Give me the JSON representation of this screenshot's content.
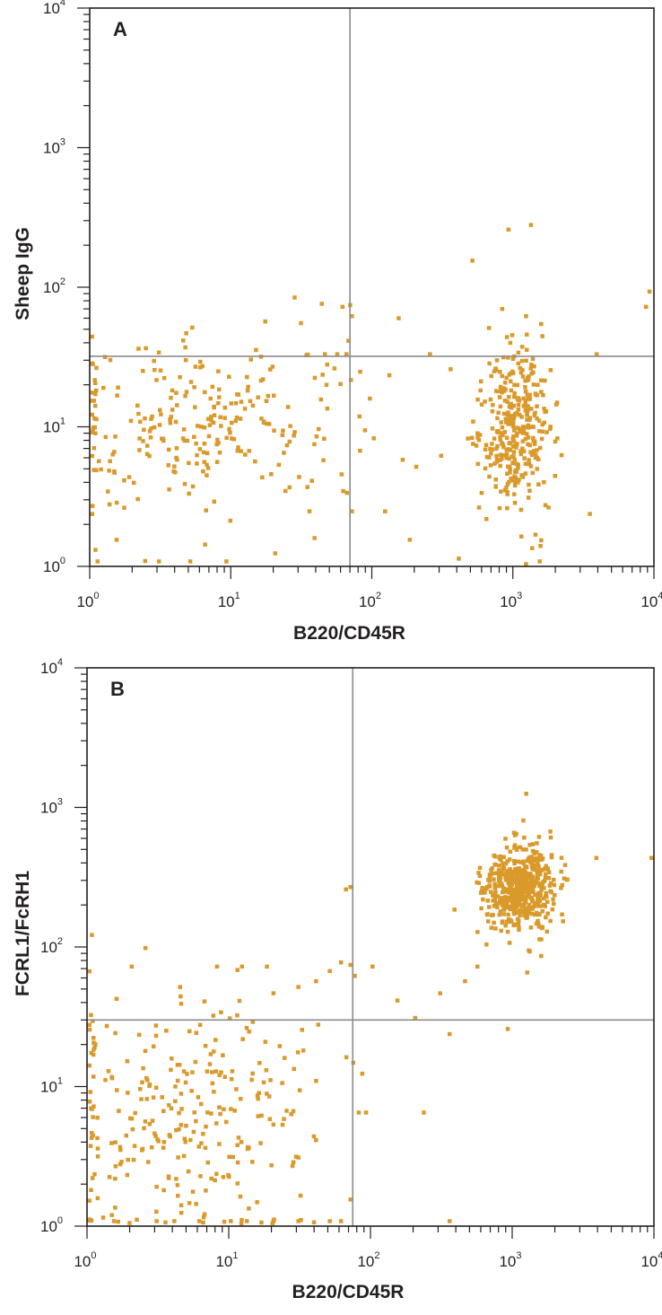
{
  "chart_data": [
    {
      "type": "scatter",
      "panel_label": "A",
      "xlabel": "B220/CD45R",
      "ylabel": "Sheep IgG",
      "xscale": "log",
      "yscale": "log",
      "xlim": [
        1,
        10000
      ],
      "ylim": [
        1,
        10000
      ],
      "x_ticks": [
        {
          "base": "10",
          "exp": "0"
        },
        {
          "base": "10",
          "exp": "1"
        },
        {
          "base": "10",
          "exp": "2"
        },
        {
          "base": "10",
          "exp": "3"
        },
        {
          "base": "10",
          "exp": "4"
        }
      ],
      "y_ticks": [
        {
          "base": "10",
          "exp": "0"
        },
        {
          "base": "10",
          "exp": "1"
        },
        {
          "base": "10",
          "exp": "2"
        },
        {
          "base": "10",
          "exp": "3"
        },
        {
          "base": "10",
          "exp": "4"
        }
      ],
      "quadrant": {
        "x": 70,
        "y": 32
      },
      "grid": false,
      "point_color": "#d99a2b",
      "line_color": "#8c8c8c",
      "populations": [
        {
          "x_center": 6,
          "y_center": 10,
          "x_spread": 0.55,
          "y_spread": 0.3,
          "count": 260
        },
        {
          "x_center": 1000,
          "y_center": 10,
          "x_spread": 0.12,
          "y_spread": 0.3,
          "count": 340
        }
      ],
      "points": [
        [
          60,
          70
        ],
        [
          68,
          72
        ],
        [
          70,
          60
        ],
        [
          66,
          40
        ],
        [
          55,
          32
        ],
        [
          64,
          32
        ],
        [
          45,
          32
        ],
        [
          17,
          55
        ],
        [
          900,
          250
        ],
        [
          1300,
          270
        ],
        [
          500,
          150
        ],
        [
          9000,
          90
        ],
        [
          8500,
          70
        ],
        [
          150,
          58
        ],
        [
          1200,
          60
        ],
        [
          3800,
          32
        ],
        [
          3400,
          2.3
        ],
        [
          250,
          32
        ],
        [
          350,
          25
        ],
        [
          120,
          2.4
        ],
        [
          200,
          5
        ],
        [
          180,
          1.5
        ],
        [
          300,
          6
        ],
        [
          80,
          24
        ],
        [
          100,
          8
        ],
        [
          400,
          1.1
        ],
        [
          1500,
          1.05
        ],
        [
          2000,
          8
        ],
        [
          1.1,
          1.05
        ],
        [
          3,
          1.05
        ],
        [
          5,
          1.05
        ],
        [
          9,
          1.05
        ],
        [
          20,
          1.2
        ],
        [
          35,
          2.4
        ],
        [
          70,
          2.4
        ],
        [
          1.5,
          1.5
        ]
      ]
    },
    {
      "type": "scatter",
      "panel_label": "B",
      "xlabel": "B220/CD45R",
      "ylabel": "FCRL1/FcRH1",
      "xscale": "log",
      "yscale": "log",
      "xlim": [
        1,
        10000
      ],
      "ylim": [
        1,
        10000
      ],
      "x_ticks": [
        {
          "base": "10",
          "exp": "0"
        },
        {
          "base": "10",
          "exp": "1"
        },
        {
          "base": "10",
          "exp": "2"
        },
        {
          "base": "10",
          "exp": "3"
        },
        {
          "base": "10",
          "exp": "4"
        }
      ],
      "y_ticks": [
        {
          "base": "10",
          "exp": "0"
        },
        {
          "base": "10",
          "exp": "1"
        },
        {
          "base": "10",
          "exp": "2"
        },
        {
          "base": "10",
          "exp": "3"
        },
        {
          "base": "10",
          "exp": "4"
        }
      ],
      "quadrant": {
        "x": 75,
        "y": 30
      },
      "grid": false,
      "point_color": "#d99a2b",
      "line_color": "#8c8c8c",
      "populations": [
        {
          "x_center": 5,
          "y_center": 6,
          "x_spread": 0.5,
          "y_spread": 0.45,
          "count": 280
        },
        {
          "x_center": 1100,
          "y_center": 250,
          "x_spread": 0.12,
          "y_spread": 0.15,
          "count": 560
        }
      ],
      "points": [
        [
          65,
          250
        ],
        [
          70,
          260
        ],
        [
          60,
          75
        ],
        [
          70,
          72
        ],
        [
          75,
          60
        ],
        [
          50,
          65
        ],
        [
          40,
          55
        ],
        [
          30,
          50
        ],
        [
          20,
          45
        ],
        [
          100,
          70
        ],
        [
          150,
          40
        ],
        [
          200,
          30
        ],
        [
          300,
          45
        ],
        [
          350,
          23
        ],
        [
          450,
          55
        ],
        [
          550,
          70
        ],
        [
          900,
          25
        ],
        [
          3800,
          420
        ],
        [
          12000,
          420
        ],
        [
          1800,
          650
        ],
        [
          230,
          6.3
        ],
        [
          350,
          1.05
        ],
        [
          80,
          6.3
        ],
        [
          90,
          6.3
        ],
        [
          70,
          1.5
        ],
        [
          60,
          1.05
        ],
        [
          50,
          1.05
        ],
        [
          40,
          4
        ],
        [
          30,
          3
        ],
        [
          2,
          70
        ],
        [
          2.5,
          95
        ],
        [
          12,
          70
        ],
        [
          18,
          70
        ],
        [
          8,
          70
        ],
        [
          3,
          1.05
        ],
        [
          4,
          1.05
        ],
        [
          6,
          1.05
        ],
        [
          10,
          1.05
        ],
        [
          1.5,
          1.05
        ],
        [
          13,
          1.05
        ],
        [
          20,
          1.05
        ],
        [
          30,
          1.05
        ]
      ]
    }
  ]
}
